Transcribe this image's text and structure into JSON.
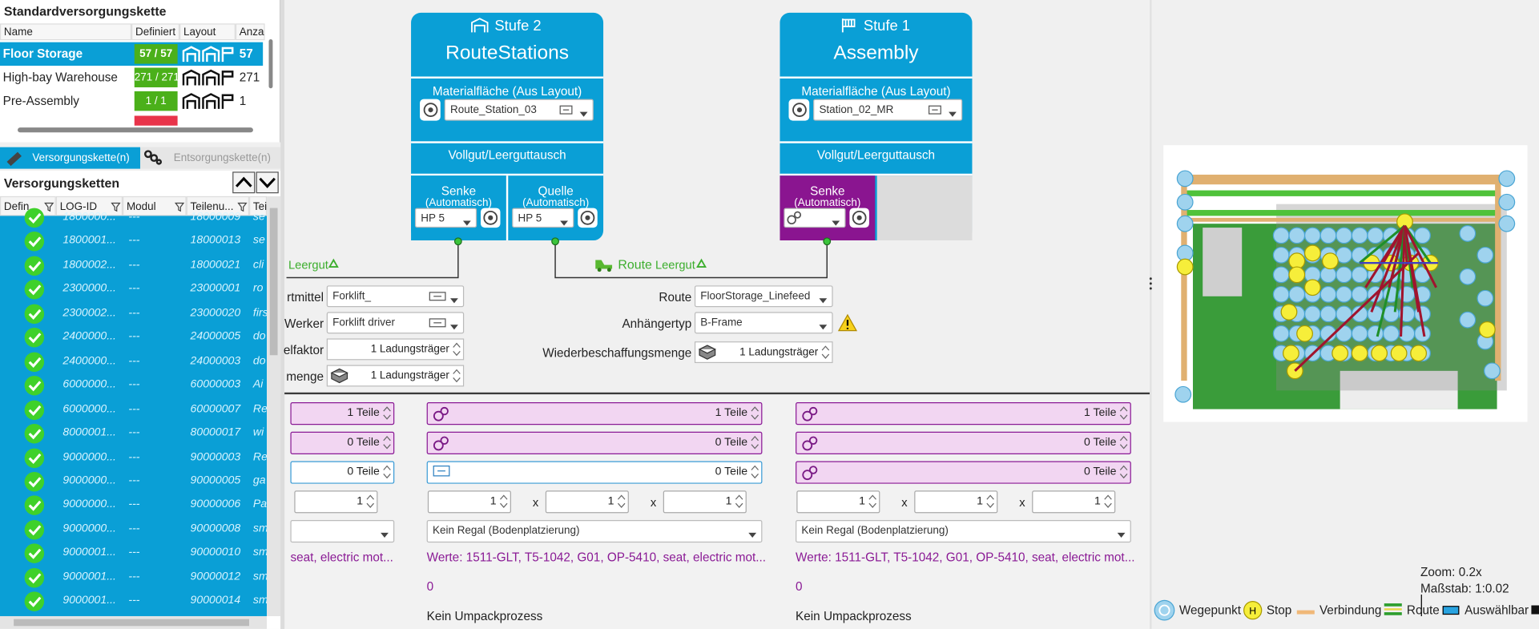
{
  "top_table": {
    "title": "Standardversorgungskette",
    "columns": [
      "Name",
      "Definiert",
      "Layout",
      "Anza"
    ],
    "rows": [
      [
        "Floor Storage",
        "57 / 57",
        "57"
      ],
      [
        "High-bay Warehouse",
        "271 / 271",
        "271"
      ],
      [
        "Pre-Assembly",
        "1 / 1",
        "1"
      ]
    ]
  },
  "tabs": [
    "Versorgungskette(n)",
    "Entsorgungskette(n)"
  ],
  "chains": {
    "title": "Versorgungsketten",
    "columns": [
      "Defin...",
      "LOG-ID",
      "Modul",
      "Teilenu...",
      "Teil"
    ],
    "rows": [
      [
        "1800000...",
        "---",
        "18000009",
        "se"
      ],
      [
        "1800001...",
        "---",
        "18000013",
        "se"
      ],
      [
        "1800002...",
        "---",
        "18000021",
        "cli"
      ],
      [
        "2300000...",
        "---",
        "23000001",
        "ro"
      ],
      [
        "2300002...",
        "---",
        "23000020",
        "firs"
      ],
      [
        "2400000...",
        "---",
        "24000005",
        "do"
      ],
      [
        "2400000...",
        "---",
        "24000003",
        "do"
      ],
      [
        "6000000...",
        "---",
        "60000003",
        "Ai"
      ],
      [
        "6000000...",
        "---",
        "60000007",
        "Re"
      ],
      [
        "8000001...",
        "---",
        "80000017",
        "wi"
      ],
      [
        "9000000...",
        "---",
        "90000003",
        "Re"
      ],
      [
        "9000000...",
        "---",
        "90000005",
        "ga"
      ],
      [
        "9000000...",
        "---",
        "90000006",
        "Pa"
      ],
      [
        "9000000...",
        "---",
        "90000008",
        "sm"
      ],
      [
        "9000001...",
        "---",
        "90000010",
        "sm"
      ],
      [
        "9000001...",
        "---",
        "90000012",
        "sm"
      ],
      [
        "9000001...",
        "---",
        "90000014",
        "sm"
      ]
    ]
  },
  "stages": [
    {
      "stage": "Stufe 2",
      "name": "RouteStations",
      "area_label": "Materialfläche (Aus Layout)",
      "area": "Route_Station_03",
      "exchange": "Vollgut/Leerguttausch",
      "sink": "Senke",
      "sink_mode": "(Automatisch)",
      "sink_value": "HP 5",
      "source": "Quelle",
      "source_mode": "(Automatisch)",
      "source_value": "HP 5"
    },
    {
      "stage": "Stufe 1",
      "name": "Assembly",
      "area_label": "Materialfläche (Aus Layout)",
      "area": "Station_02_MR",
      "exchange": "Vollgut/Leerguttausch",
      "sink": "Senke",
      "sink_mode": "(Automatisch)"
    }
  ],
  "links": {
    "left": "Leergut",
    "route": "Route",
    "right": "Leergut"
  },
  "left_form": [
    {
      "label": "rtmittel",
      "value": "Forklift_"
    },
    {
      "label": "Werker",
      "value": "Forklift driver"
    },
    {
      "label": "elfaktor",
      "value": "1 Ladungsträger"
    },
    {
      "label": "menge",
      "value": "1 Ladungsträger"
    }
  ],
  "route_form": [
    {
      "label": "Route",
      "value": "FloorStorage_Linefeed"
    },
    {
      "label": "Anhängertyp",
      "value": "B-Frame"
    },
    {
      "label": "Wiederbeschaffungsmenge",
      "value": "1 Ladungsträger"
    }
  ],
  "columns": [
    {
      "quantities": [
        "1 Teile",
        "0 Teile",
        "0 Teile"
      ],
      "dims": [
        "1"
      ],
      "werte": "seat, electric mot..."
    },
    {
      "quantities": [
        "1 Teile",
        "0 Teile",
        "0 Teile"
      ],
      "dims": [
        "1",
        "1",
        "1"
      ],
      "separator": "x",
      "shelf": "Kein Regal (Bodenplatzierung)",
      "werte": "Werte: 1511-GLT, T5-1042, G01, OP-5410, seat, electric mot...",
      "count": "0",
      "repack": "Kein Umpackprozess"
    },
    {
      "quantities": [
        "1 Teile",
        "0 Teile",
        "0 Teile"
      ],
      "dims": [
        "1",
        "1",
        "1"
      ],
      "separator": "x",
      "shelf": "Kein Regal (Bodenplatzierung)",
      "werte": "Werte: 1511-GLT, T5-1042, G01, OP-5410, seat, electric mot...",
      "count": "0",
      "repack": "Kein Umpackprozess"
    }
  ],
  "map": {
    "zoom": "Zoom: 0.2x",
    "scale": "Maßstab: 1:0.02",
    "legend": [
      "Wegepunkt",
      "Stop",
      "Verbindung",
      "Route",
      "Auswählbar"
    ]
  }
}
